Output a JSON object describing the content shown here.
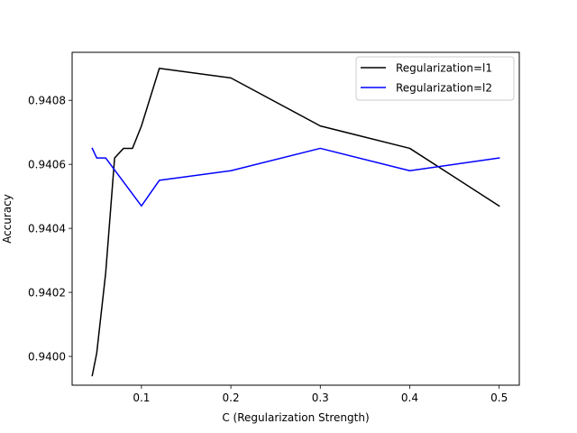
{
  "chart_data": {
    "type": "line",
    "title": "",
    "xlabel": "C (Regularization Strength)",
    "ylabel": "Accuracy",
    "xlim": [
      0.0225,
      0.5225
    ],
    "ylim": [
      0.93991,
      0.94095
    ],
    "xticks": [
      0.1,
      0.2,
      0.3,
      0.4,
      0.5
    ],
    "xtick_labels": [
      "0.1",
      "0.2",
      "0.3",
      "0.4",
      "0.5"
    ],
    "yticks": [
      0.94,
      0.9402,
      0.9404,
      0.9406,
      0.9408
    ],
    "ytick_labels": [
      "0.9400",
      "0.9402",
      "0.9404",
      "0.9406",
      "0.9408"
    ],
    "grid": false,
    "legend_position": "top-right",
    "series": [
      {
        "name": "Regularization=l1",
        "color": "#000000",
        "x": [
          0.045,
          0.05,
          0.06,
          0.07,
          0.08,
          0.09,
          0.1,
          0.12,
          0.2,
          0.3,
          0.4,
          0.5
        ],
        "y": [
          0.93994,
          0.94001,
          0.94026,
          0.94062,
          0.94065,
          0.94065,
          0.94072,
          0.9409,
          0.94087,
          0.94072,
          0.94065,
          0.94047
        ]
      },
      {
        "name": "Regularization=l2",
        "color": "#0000ff",
        "x": [
          0.045,
          0.05,
          0.06,
          0.1,
          0.12,
          0.2,
          0.3,
          0.4,
          0.5
        ],
        "y": [
          0.94065,
          0.94062,
          0.94062,
          0.94047,
          0.94055,
          0.94058,
          0.94065,
          0.94058,
          0.94062
        ]
      }
    ]
  }
}
